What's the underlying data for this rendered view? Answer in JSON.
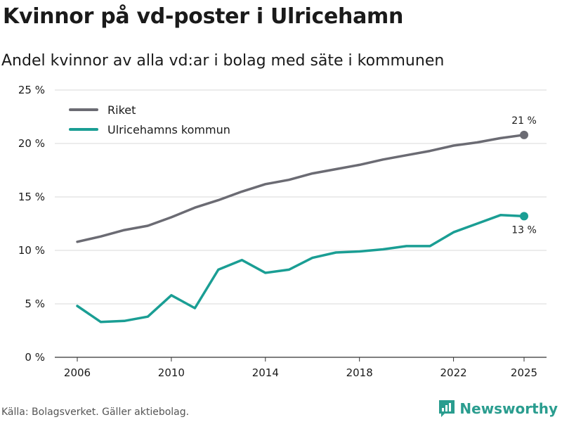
{
  "title": "Kvinnor på vd-poster i Ulricehamn",
  "subtitle": "Andel kvinnor av alla vd:ar i bolag med säte i kommunen",
  "source": "Källa: Bolagsverket. Gäller aktiebolag.",
  "brand": {
    "name": "Newsworthy",
    "icon": "newsworthy-logo-icon"
  },
  "colors": {
    "riket": "#6b6b73",
    "ulricehamn": "#1a9e94",
    "grid": "#d9d9d9"
  },
  "chart_data": {
    "type": "line",
    "title": "Kvinnor på vd-poster i Ulricehamn",
    "subtitle": "Andel kvinnor av alla vd:ar i bolag med säte i kommunen",
    "xlabel": "",
    "ylabel": "",
    "x": [
      2006,
      2007,
      2008,
      2009,
      2010,
      2011,
      2012,
      2013,
      2014,
      2015,
      2016,
      2017,
      2018,
      2019,
      2020,
      2021,
      2022,
      2023,
      2024,
      2025
    ],
    "xlim": [
      2006,
      2025
    ],
    "x_ticks": [
      2006,
      2010,
      2014,
      2018,
      2022,
      2025
    ],
    "x_tick_labels": [
      "2006",
      "2010",
      "2014",
      "2018",
      "2022",
      "2025"
    ],
    "ylim": [
      0,
      25
    ],
    "y_ticks": [
      0,
      5,
      10,
      15,
      20,
      25
    ],
    "y_tick_labels": [
      "0 %",
      "5 %",
      "10 %",
      "15 %",
      "20 %",
      "25 %"
    ],
    "grid": true,
    "legend": "top-left",
    "series": [
      {
        "name": "Riket",
        "color": "#6b6b73",
        "values": [
          10.8,
          11.3,
          11.9,
          12.3,
          13.1,
          14.0,
          14.7,
          15.5,
          16.2,
          16.6,
          17.2,
          17.6,
          18.0,
          18.5,
          18.9,
          19.3,
          19.8,
          20.1,
          20.5,
          20.8
        ],
        "end_label": "21 %"
      },
      {
        "name": "Ulricehamns kommun",
        "color": "#1a9e94",
        "values": [
          4.8,
          3.3,
          3.4,
          3.8,
          5.8,
          4.6,
          8.2,
          9.1,
          7.9,
          8.2,
          9.3,
          9.8,
          9.9,
          10.1,
          10.4,
          10.4,
          11.7,
          12.5,
          13.3,
          13.2
        ],
        "end_label": "13 %"
      }
    ]
  }
}
